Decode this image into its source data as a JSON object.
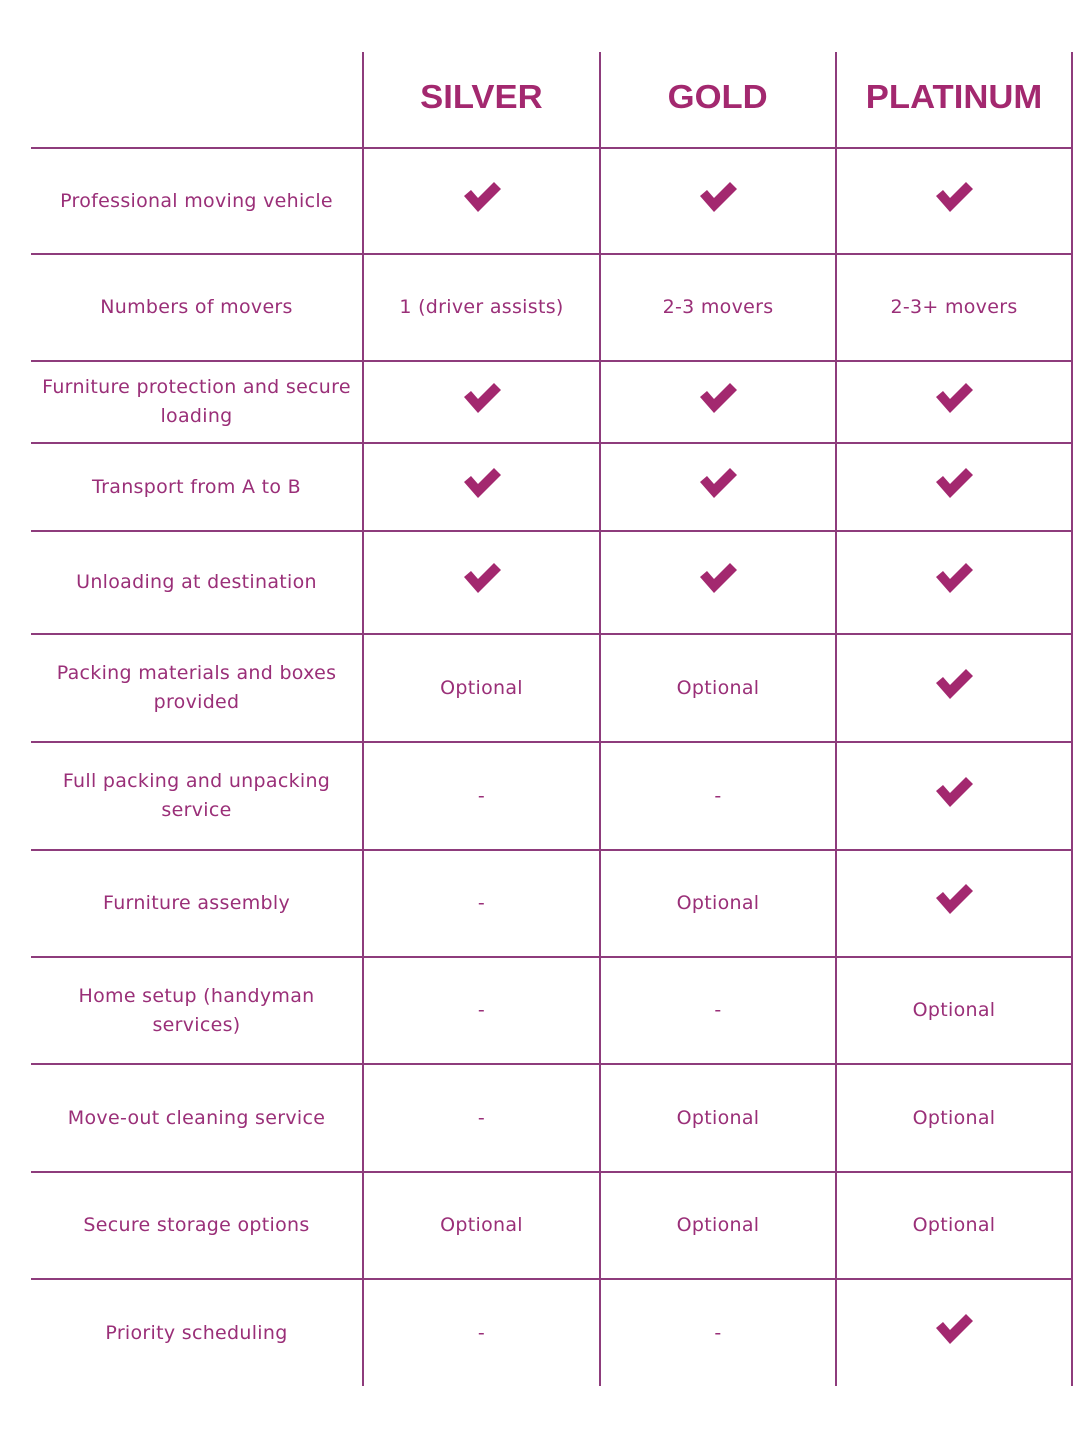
{
  "accent_color": "#a3286f",
  "text_color": "#9a2f78",
  "line_color": "#8e3c7c",
  "tiers": [
    "SILVER",
    "GOLD",
    "PLATINUM"
  ],
  "rows": [
    {
      "feature": "Professional moving vehicle",
      "values": [
        "check-icon",
        "check-icon",
        "check-icon"
      ]
    },
    {
      "feature": "Numbers of movers",
      "values": [
        "1 (driver assists)",
        "2-3 movers",
        "2-3+ movers"
      ]
    },
    {
      "feature": "Furniture protection and secure loading",
      "values": [
        "check-icon",
        "check-icon",
        "check-icon"
      ]
    },
    {
      "feature": "Transport from A to B",
      "values": [
        "check-icon",
        "check-icon",
        "check-icon"
      ]
    },
    {
      "feature": "Unloading at destination",
      "values": [
        "check-icon",
        "check-icon",
        "check-icon"
      ]
    },
    {
      "feature": "Packing materials and boxes provided",
      "values": [
        "Optional",
        "Optional",
        "check-icon"
      ]
    },
    {
      "feature": "Full packing and unpacking service",
      "values": [
        "-",
        "-",
        "check-icon"
      ]
    },
    {
      "feature": "Furniture assembly",
      "values": [
        "-",
        "Optional",
        "check-icon"
      ]
    },
    {
      "feature": "Home setup (handyman services)",
      "values": [
        "-",
        "-",
        "Optional"
      ]
    },
    {
      "feature": "Move-out cleaning service",
      "values": [
        "-",
        "Optional",
        "Optional"
      ]
    },
    {
      "feature": "Secure storage options",
      "values": [
        "Optional",
        "Optional",
        "Optional"
      ]
    },
    {
      "feature": "Priority scheduling",
      "values": [
        "-",
        "-",
        "check-icon"
      ]
    }
  ]
}
